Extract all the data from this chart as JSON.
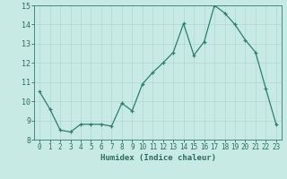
{
  "x": [
    0,
    1,
    2,
    3,
    4,
    5,
    6,
    7,
    8,
    9,
    10,
    11,
    12,
    13,
    14,
    15,
    16,
    17,
    18,
    19,
    20,
    21,
    22,
    23
  ],
  "y": [
    10.5,
    9.6,
    8.5,
    8.4,
    8.8,
    8.8,
    8.8,
    8.7,
    9.9,
    9.5,
    10.9,
    11.5,
    12.0,
    12.55,
    14.05,
    12.4,
    13.1,
    15.0,
    14.6,
    14.0,
    13.2,
    12.55,
    10.65,
    8.8
  ],
  "xlabel": "Humidex (Indice chaleur)",
  "xlim": [
    -0.5,
    23.5
  ],
  "ylim": [
    8,
    15
  ],
  "yticks": [
    8,
    9,
    10,
    11,
    12,
    13,
    14,
    15
  ],
  "xticks": [
    0,
    1,
    2,
    3,
    4,
    5,
    6,
    7,
    8,
    9,
    10,
    11,
    12,
    13,
    14,
    15,
    16,
    17,
    18,
    19,
    20,
    21,
    22,
    23
  ],
  "line_color": "#2e7d6e",
  "marker": "+",
  "bg_color": "#c8eae4",
  "grid_color": "#b0d8d0",
  "font_color": "#2e6b5e"
}
